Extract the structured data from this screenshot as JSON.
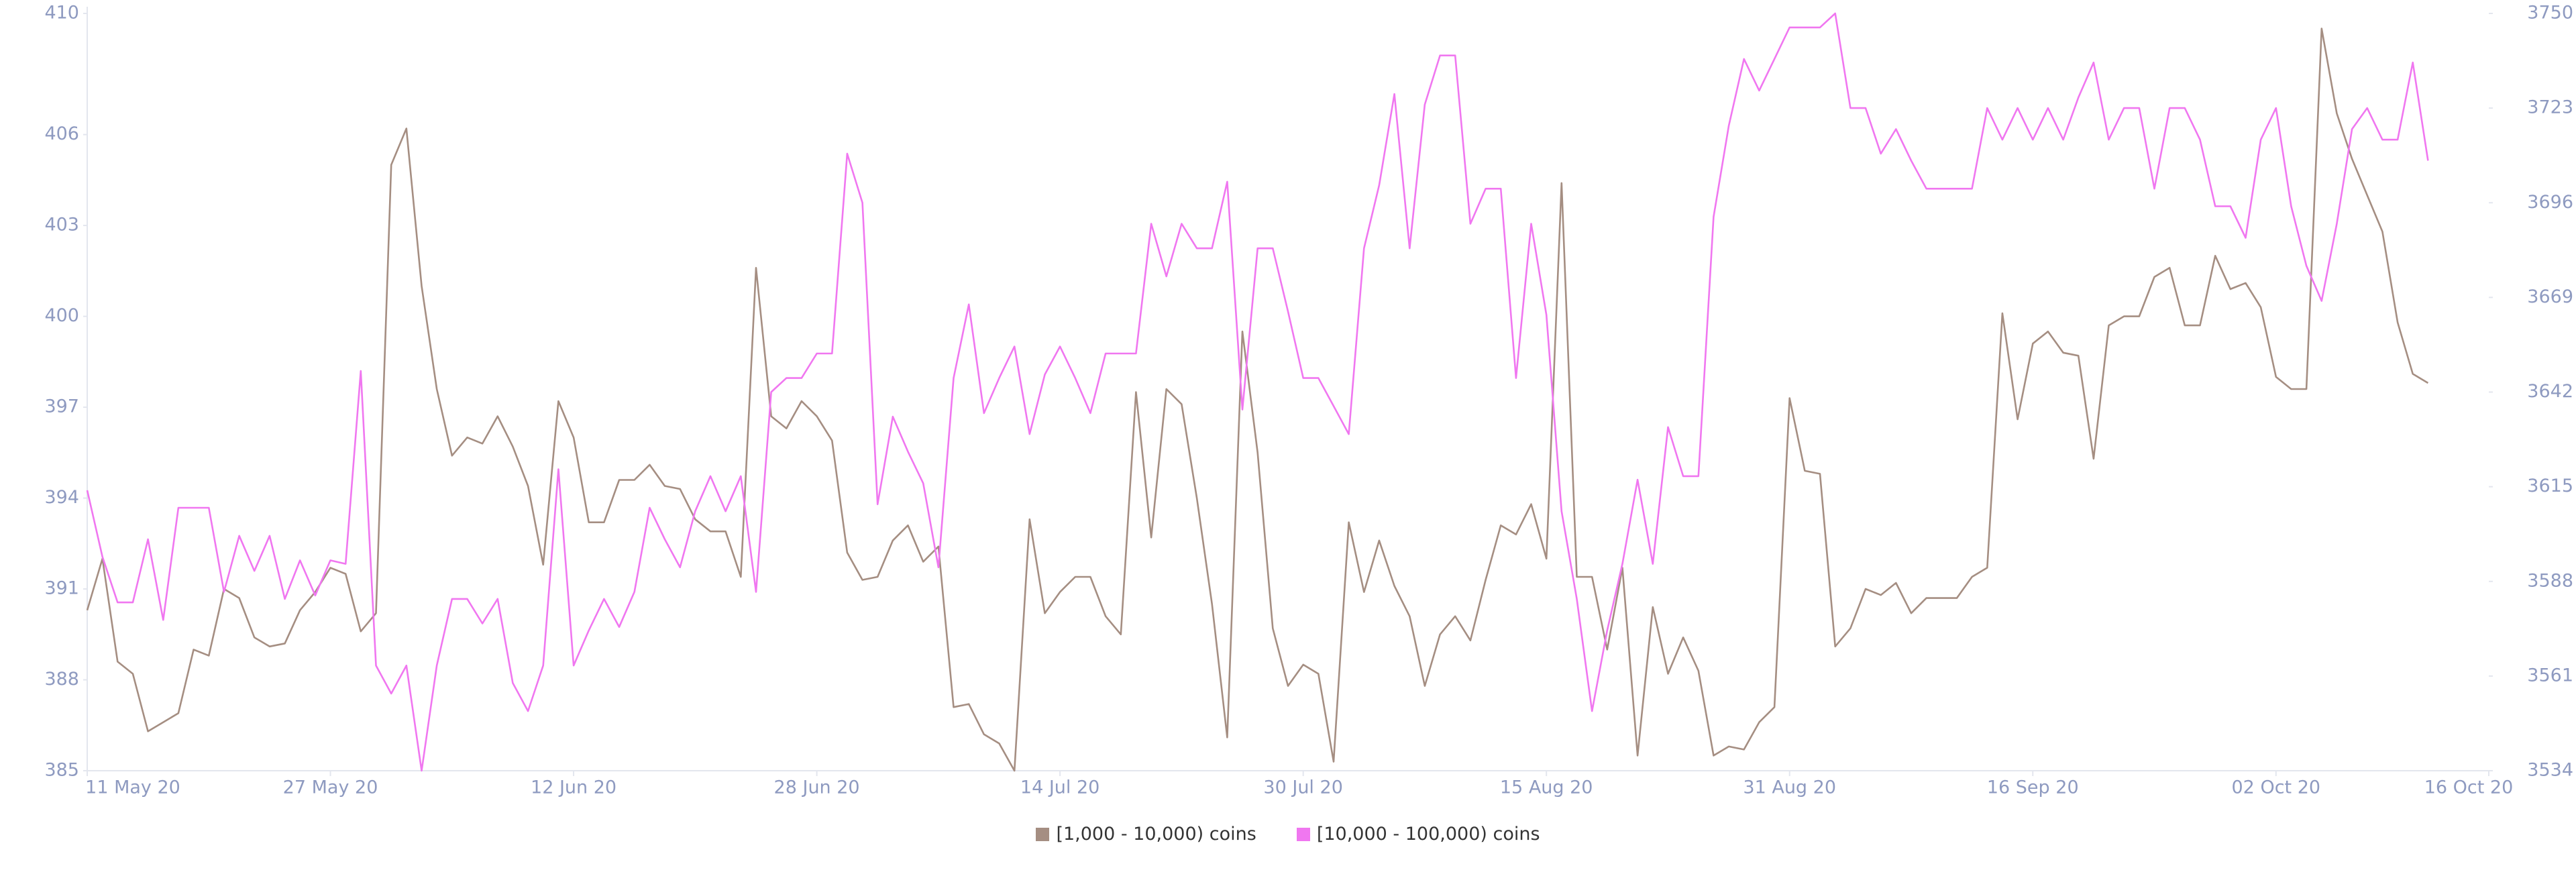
{
  "chart_data": {
    "type": "line",
    "x": [
      "11 May 20",
      "12 May 20",
      "13 May 20",
      "14 May 20",
      "15 May 20",
      "16 May 20",
      "17 May 20",
      "18 May 20",
      "19 May 20",
      "20 May 20",
      "21 May 20",
      "22 May 20",
      "23 May 20",
      "24 May 20",
      "25 May 20",
      "26 May 20",
      "27 May 20",
      "28 May 20",
      "29 May 20",
      "30 May 20",
      "31 May 20",
      "1 Jun 20",
      "2 Jun 20",
      "3 Jun 20",
      "4 Jun 20",
      "5 Jun 20",
      "6 Jun 20",
      "7 Jun 20",
      "8 Jun 20",
      "9 Jun 20",
      "10 Jun 20",
      "11 Jun 20",
      "12 Jun 20",
      "13 Jun 20",
      "14 Jun 20",
      "15 Jun 20",
      "16 Jun 20",
      "17 Jun 20",
      "18 Jun 20",
      "19 Jun 20",
      "20 Jun 20",
      "21 Jun 20",
      "22 Jun 20",
      "23 Jun 20",
      "24 Jun 20",
      "25 Jun 20",
      "26 Jun 20",
      "27 Jun 20",
      "28 Jun 20",
      "29 Jun 20",
      "30 Jun 20",
      "1 Jul 20",
      "2 Jul 20",
      "3 Jul 20",
      "4 Jul 20",
      "5 Jul 20",
      "6 Jul 20",
      "7 Jul 20",
      "8 Jul 20",
      "9 Jul 20",
      "10 Jul 20",
      "11 Jul 20",
      "12 Jul 20",
      "13 Jul 20",
      "14 Jul 20",
      "15 Jul 20",
      "16 Jul 20",
      "17 Jul 20",
      "18 Jul 20",
      "19 Jul 20",
      "20 Jul 20",
      "21 Jul 20",
      "22 Jul 20",
      "23 Jul 20",
      "24 Jul 20",
      "25 Jul 20",
      "26 Jul 20",
      "27 Jul 20",
      "28 Jul 20",
      "29 Jul 20",
      "30 Jul 20",
      "31 Jul 20",
      "1 Aug 20",
      "2 Aug 20",
      "3 Aug 20",
      "4 Aug 20",
      "5 Aug 20",
      "6 Aug 20",
      "7 Aug 20",
      "8 Aug 20",
      "9 Aug 20",
      "10 Aug 20",
      "11 Aug 20",
      "12 Aug 20",
      "13 Aug 20",
      "14 Aug 20",
      "15 Aug 20",
      "16 Aug 20",
      "17 Aug 20",
      "18 Aug 20",
      "19 Aug 20",
      "20 Aug 20",
      "21 Aug 20",
      "22 Aug 20",
      "23 Aug 20",
      "24 Aug 20",
      "25 Aug 20",
      "26 Aug 20",
      "27 Aug 20",
      "28 Aug 20",
      "29 Aug 20",
      "30 Aug 20",
      "31 Aug 20",
      "1 Sep 20",
      "2 Sep 20",
      "3 Sep 20",
      "4 Sep 20",
      "5 Sep 20",
      "6 Sep 20",
      "7 Sep 20",
      "8 Sep 20",
      "9 Sep 20",
      "10 Sep 20",
      "11 Sep 20",
      "12 Sep 20",
      "13 Sep 20",
      "14 Sep 20",
      "15 Sep 20",
      "16 Sep 20",
      "17 Sep 20",
      "18 Sep 20",
      "19 Sep 20",
      "20 Sep 20",
      "21 Sep 20",
      "22 Sep 20",
      "23 Sep 20",
      "24 Sep 20",
      "25 Sep 20",
      "26 Sep 20",
      "27 Sep 20",
      "28 Sep 20",
      "29 Sep 20",
      "30 Sep 20",
      "1 Oct 20",
      "2 Oct 20",
      "3 Oct 20",
      "4 Oct 20",
      "5 Oct 20",
      "6 Oct 20",
      "7 Oct 20",
      "8 Oct 20",
      "9 Oct 20",
      "10 Oct 20",
      "11 Oct 20",
      "12 Oct 20"
    ],
    "xlim": [
      "11 May 20",
      "16 Oct 20"
    ],
    "xticks": [
      "11 May 20",
      "27 May 20",
      "12 Jun 20",
      "28 Jun 20",
      "14 Jul 20",
      "30 Jul 20",
      "15 Aug 20",
      "31 Aug 20",
      "16 Sep 20",
      "02 Oct 20",
      "16 Oct 20"
    ],
    "ylim": [
      385,
      410
    ],
    "yticks": [
      385,
      388,
      391,
      394,
      397,
      400,
      403,
      406,
      410
    ],
    "y2lim": [
      3534,
      3750
    ],
    "y2ticks": [
      3534,
      3561,
      3588,
      3615,
      3642,
      3669,
      3696,
      3723,
      3750
    ],
    "legend": "bottom",
    "series": [
      {
        "name": "[1,000 - 10,000) coins",
        "color": "#a58e82",
        "values": [
          390.3,
          392,
          388.6,
          388.2,
          386.3,
          386.6,
          386.9,
          389,
          388.8,
          391,
          390.7,
          389.4,
          389.1,
          389.2,
          390.3,
          390.9,
          391.7,
          391.5,
          389.6,
          390.2,
          405,
          406.2,
          401,
          397.6,
          395.4,
          396,
          395.8,
          396.7,
          395.7,
          394.4,
          391.8,
          397.2,
          396,
          393.2,
          393.2,
          394.6,
          394.6,
          395.1,
          394.4,
          394.3,
          393.3,
          392.9,
          392.9,
          391.4,
          401.6,
          396.7,
          396.3,
          397.2,
          396.7,
          395.9,
          392.2,
          391.3,
          391.4,
          392.6,
          393.1,
          391.9,
          392.4,
          387.1,
          387.2,
          386.2,
          385.9,
          385,
          393.3,
          390.2,
          390.9,
          391.4,
          391.4,
          390.1,
          389.5,
          397.5,
          392.7,
          397.6,
          397.1,
          394,
          390.5,
          386.1,
          399.5,
          395.5,
          389.7,
          387.8,
          388.5,
          388.2,
          385.3,
          393.2,
          390.9,
          392.6,
          391.1,
          390.1,
          387.8,
          389.5,
          390.1,
          389.3,
          391.3,
          393.1,
          392.8,
          393.8,
          392,
          404.4,
          391.4,
          391.4,
          389,
          391.7,
          385.5,
          390.4,
          388.2,
          389.4,
          388.3,
          385.5,
          385.8,
          385.7,
          386.6,
          387.1,
          397.3,
          394.9,
          394.8,
          389.1,
          389.7,
          391,
          390.8,
          391.2,
          390.2,
          390.7,
          390.7,
          390.7,
          391.4,
          391.7,
          400.1,
          396.6,
          399.1,
          399.5,
          398.8,
          398.7,
          395.3,
          399.7,
          400,
          400,
          401.3,
          401.6,
          399.7,
          399.7,
          402,
          400.9,
          401.1,
          400.3,
          398,
          397.6,
          397.6,
          409.5,
          406.7,
          405.2,
          404,
          402.8,
          399.8,
          398.1,
          397.8
        ]
      },
      {
        "name": "[10,000 - 100,000) coins",
        "color": "#f077f0",
        "axis": "y2",
        "values": [
          3614,
          3595,
          3582,
          3582,
          3600,
          3577,
          3609,
          3609,
          3609,
          3585,
          3601,
          3591,
          3601,
          3583,
          3594,
          3584,
          3594,
          3593,
          3648,
          3564,
          3556,
          3564,
          3534,
          3564,
          3583,
          3583,
          3576,
          3583,
          3559,
          3551,
          3564,
          3620,
          3564,
          3574,
          3583,
          3575,
          3585,
          3609,
          3600,
          3592,
          3608,
          3618,
          3608,
          3618,
          3585,
          3642,
          3646,
          3646,
          3653,
          3653,
          3710,
          3696,
          3610,
          3635,
          3625,
          3616,
          3592,
          3646,
          3667,
          3636,
          3646,
          3655,
          3630,
          3647,
          3655,
          3646,
          3636,
          3653,
          3653,
          3653,
          3690,
          3675,
          3690,
          3683,
          3683,
          3702,
          3637,
          3683,
          3683,
          3665,
          3646,
          3646,
          3638,
          3630,
          3683,
          3701,
          3727,
          3683,
          3724,
          3738,
          3738,
          3690,
          3700,
          3700,
          3646,
          3690,
          3664,
          3608,
          3583,
          3551,
          3574,
          3593,
          3617,
          3593,
          3632,
          3618,
          3618,
          3692,
          3718,
          3737,
          3728,
          3737,
          3746,
          3746,
          3746,
          3750,
          3723,
          3723,
          3710,
          3717,
          3708,
          3700,
          3700,
          3700,
          3700,
          3723,
          3714,
          3723,
          3714,
          3723,
          3714,
          3726,
          3736,
          3714,
          3723,
          3723,
          3700,
          3723,
          3723,
          3714,
          3695,
          3695,
          3686,
          3714,
          3723,
          3695,
          3678,
          3668,
          3690,
          3717,
          3723,
          3714,
          3714,
          3736,
          3708
        ]
      }
    ]
  }
}
